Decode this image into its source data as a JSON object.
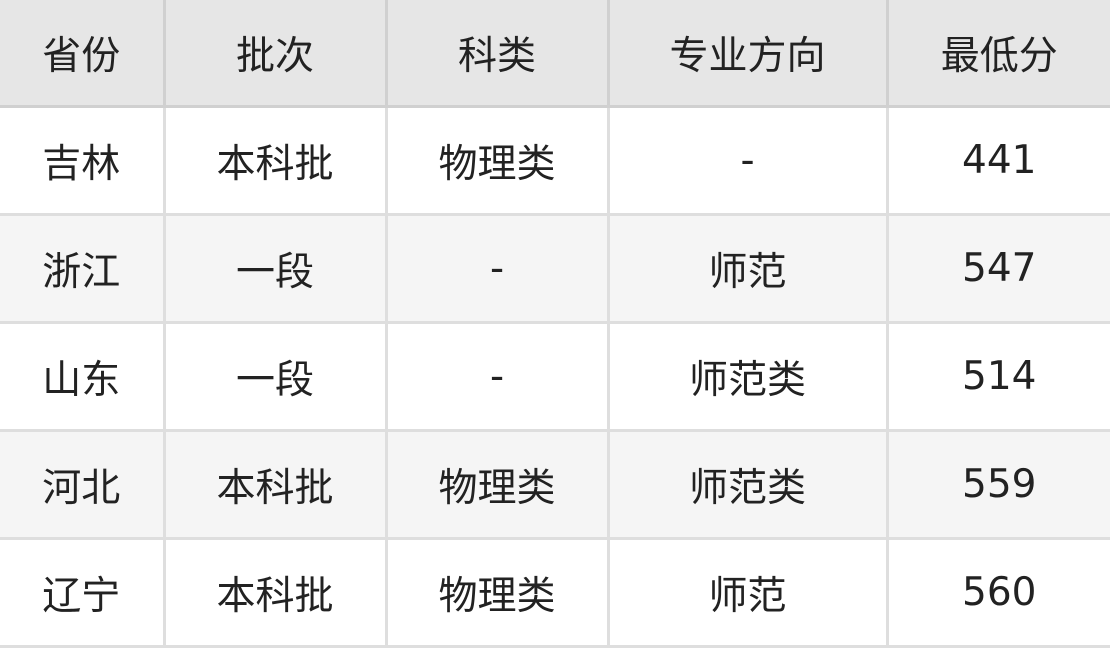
{
  "table": {
    "headers": [
      "省份",
      "批次",
      "科类",
      "专业方向",
      "最低分"
    ],
    "rows": [
      [
        "吉林",
        "本科批",
        "物理类",
        "-",
        "441"
      ],
      [
        "浙江",
        "一段",
        "-",
        "师范",
        "547"
      ],
      [
        "山东",
        "一段",
        "-",
        "师范类",
        "514"
      ],
      [
        "河北",
        "本科批",
        "物理类",
        "师范类",
        "559"
      ],
      [
        "辽宁",
        "本科批",
        "物理类",
        "师范",
        "560"
      ]
    ]
  },
  "colors": {
    "header_bg": "#e6e6e6",
    "alt_row_bg": "#f5f5f5",
    "border": "#dedede"
  }
}
